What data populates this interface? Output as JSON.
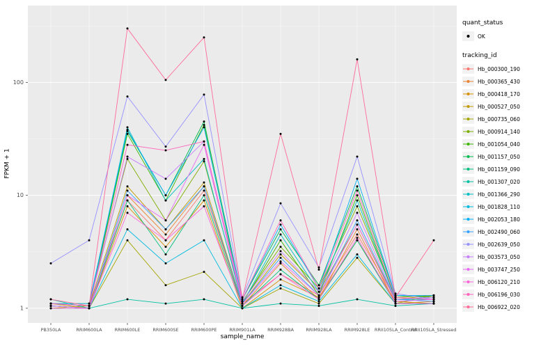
{
  "figure": {
    "background": "#FFFFFF",
    "panel_background": "#EBEBEB",
    "gridline_color": "#FFFFFF",
    "point_color": "#000000",
    "tick_text_color": "#4D4D4D"
  },
  "axes": {
    "x_title": "sample_name",
    "y_title": "FPKM + 1",
    "y_tick_labels": [
      "1",
      "10",
      "100"
    ]
  },
  "legend": {
    "quant_status_title": "quant_status",
    "quant_status_items": [
      {
        "label": "OK",
        "shape": "point",
        "color": "#000000"
      }
    ],
    "tracking_id_title": "tracking_id"
  },
  "chart_data": {
    "type": "line",
    "x_type": "categorical",
    "y_scale": "log10",
    "title": "",
    "xlabel": "sample_name",
    "ylabel": "FPKM + 1",
    "y_ticks": [
      1,
      10,
      100
    ],
    "ylim_log10": [
      -0.13,
      2.68
    ],
    "grid": true,
    "legend_position": "right",
    "point_shape": "filled-circle-black",
    "categories": [
      "PB350LA",
      "RRIM600LA",
      "RRIM600LE",
      "RRIM600SE",
      "RRIM600PE",
      "RRIM901LA",
      "RRIM928BA",
      "RRIM928LA",
      "RRIM928LE",
      "RRII105LA_Control",
      "RRII105LA_Stressed"
    ],
    "series": [
      {
        "name": "Hb_000300_190",
        "color": "#F8766D",
        "values": [
          1.1,
          1.05,
          9.0,
          4.0,
          11.0,
          1.1,
          2.0,
          1.3,
          4.5,
          1.2,
          1.2
        ]
      },
      {
        "name": "Hb_000365_430",
        "color": "#EA8331",
        "values": [
          1.05,
          1.0,
          10.0,
          4.5,
          12.0,
          1.05,
          2.5,
          1.2,
          5.0,
          1.1,
          1.15
        ]
      },
      {
        "name": "Hb_000418_170",
        "color": "#D89000",
        "values": [
          1.1,
          1.0,
          8.0,
          3.5,
          9.0,
          1.0,
          1.8,
          1.25,
          4.0,
          1.15,
          1.1
        ]
      },
      {
        "name": "Hb_000527_050",
        "color": "#C09B00",
        "values": [
          1.0,
          1.05,
          12.0,
          5.0,
          13.0,
          1.1,
          3.0,
          1.4,
          5.5,
          1.2,
          1.3
        ]
      },
      {
        "name": "Hb_000735_060",
        "color": "#A3A500",
        "values": [
          1.05,
          1.0,
          4.0,
          1.6,
          2.1,
          1.0,
          1.5,
          1.1,
          2.8,
          1.1,
          1.3
        ]
      },
      {
        "name": "Hb_000914_140",
        "color": "#7CAE00",
        "values": [
          1.1,
          1.1,
          21.0,
          6.0,
          20.0,
          1.15,
          3.5,
          1.5,
          8.0,
          1.25,
          1.3
        ]
      },
      {
        "name": "Hb_001054_040",
        "color": "#39B600",
        "values": [
          1.05,
          1.0,
          35.0,
          9.0,
          42.0,
          1.1,
          4.0,
          1.3,
          10.0,
          1.2,
          1.2
        ]
      },
      {
        "name": "Hb_001157_050",
        "color": "#00BB4E",
        "values": [
          1.1,
          1.05,
          37.0,
          10.0,
          45.0,
          1.2,
          5.0,
          1.6,
          12.0,
          1.3,
          1.25
        ]
      },
      {
        "name": "Hb_001159_090",
        "color": "#00BF7D",
        "values": [
          1.0,
          1.0,
          9.0,
          3.0,
          10.0,
          1.05,
          2.2,
          1.2,
          4.0,
          1.1,
          1.1
        ]
      },
      {
        "name": "Hb_001307_020",
        "color": "#00C1A3",
        "values": [
          1.2,
          1.0,
          1.2,
          1.1,
          1.2,
          1.0,
          1.1,
          1.05,
          1.2,
          1.05,
          1.1
        ]
      },
      {
        "name": "Hb_001366_290",
        "color": "#00BFC4",
        "values": [
          1.1,
          1.05,
          40.0,
          9.0,
          21.0,
          1.1,
          4.5,
          1.4,
          9.0,
          1.2,
          1.2
        ]
      },
      {
        "name": "Hb_001828_110",
        "color": "#00BAE0",
        "values": [
          1.05,
          1.0,
          5.0,
          2.5,
          4.0,
          1.0,
          1.6,
          1.15,
          3.0,
          1.1,
          1.1
        ]
      },
      {
        "name": "Hb_002053_180",
        "color": "#00B0F6",
        "values": [
          1.1,
          1.1,
          38.0,
          10.0,
          40.0,
          1.2,
          5.5,
          1.5,
          14.0,
          1.3,
          1.3
        ]
      },
      {
        "name": "Hb_002490_060",
        "color": "#35A2FF",
        "values": [
          1.05,
          1.0,
          11.0,
          5.0,
          12.0,
          1.1,
          2.8,
          1.3,
          6.0,
          1.2,
          1.15
        ]
      },
      {
        "name": "Hb_002639_050",
        "color": "#9590FF",
        "values": [
          2.5,
          4.0,
          75.0,
          27.0,
          78.0,
          1.25,
          8.5,
          2.3,
          22.0,
          1.35,
          1.2
        ]
      },
      {
        "name": "Hb_003573_050",
        "color": "#C77CFF",
        "values": [
          1.1,
          1.05,
          22.0,
          14.0,
          30.0,
          1.15,
          3.2,
          1.4,
          7.0,
          1.2,
          1.25
        ]
      },
      {
        "name": "Hb_003747_250",
        "color": "#E76BF3",
        "values": [
          1.05,
          1.0,
          10.0,
          6.0,
          28.0,
          1.1,
          2.6,
          1.3,
          5.5,
          1.15,
          1.2
        ]
      },
      {
        "name": "Hb_006120_210",
        "color": "#FA62DB",
        "values": [
          1.0,
          1.0,
          7.0,
          4.0,
          8.0,
          1.05,
          2.0,
          1.2,
          4.2,
          1.1,
          1.1
        ]
      },
      {
        "name": "Hb_006196_030",
        "color": "#FF62BC",
        "values": [
          1.1,
          1.05,
          28.0,
          25.0,
          30.0,
          1.2,
          6.0,
          1.5,
          11.0,
          1.25,
          1.2
        ]
      },
      {
        "name": "Hb_006922_020",
        "color": "#FF6A98",
        "values": [
          1.2,
          1.05,
          300.0,
          105.0,
          250.0,
          1.2,
          35.0,
          2.2,
          160.0,
          1.25,
          4.0
        ]
      }
    ]
  }
}
